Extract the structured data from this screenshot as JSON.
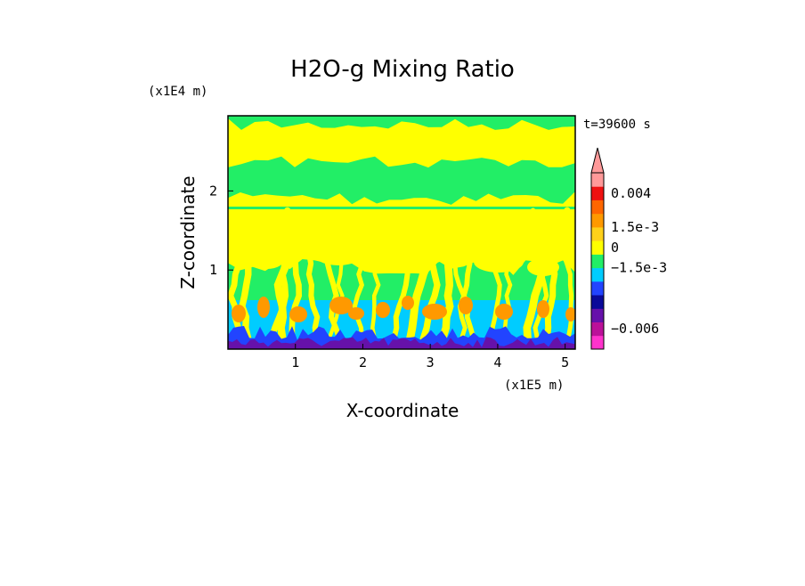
{
  "chart_data": {
    "type": "heatmap",
    "title": "H2O-g Mixing Ratio",
    "xlabel": "X-coordinate",
    "ylabel": "Z-coordinate",
    "x_unit": "(x1E5 m)",
    "y_unit": "(x1E4 m)",
    "time_label": "t=39600 s",
    "xlim": [
      0,
      5.15
    ],
    "ylim": [
      0,
      2.95
    ],
    "x_ticks": [
      {
        "value": 1,
        "label": "1"
      },
      {
        "value": 2,
        "label": "2"
      },
      {
        "value": 3,
        "label": "3"
      },
      {
        "value": 4,
        "label": "4"
      },
      {
        "value": 5,
        "label": "5"
      }
    ],
    "y_ticks": [
      {
        "value": 1,
        "label": "1"
      },
      {
        "value": 2,
        "label": "2"
      }
    ],
    "colorbar": {
      "levels": [
        {
          "color": "#ff33cc"
        },
        {
          "color": "#bb1199"
        },
        {
          "color": "#6611aa"
        },
        {
          "color": "#0a0a99"
        },
        {
          "color": "#2244ff"
        },
        {
          "color": "#00ccff"
        },
        {
          "color": "#22ee66"
        },
        {
          "color": "#ffff00"
        },
        {
          "color": "#ffd11a"
        },
        {
          "color": "#ff9900"
        },
        {
          "color": "#ff6600"
        },
        {
          "color": "#ee1111"
        },
        {
          "color": "#ff9999"
        }
      ],
      "labels": [
        {
          "text": "0.004",
          "level": 11.5
        },
        {
          "text": "1.5e-3",
          "level": 9
        },
        {
          "text": "0",
          "level": 7.5
        },
        {
          "text": "−1.5e-3",
          "level": 6
        },
        {
          "text": "−0.006",
          "level": 1.5
        }
      ]
    },
    "field": {
      "background": "#22ee66",
      "layers": [
        {
          "name": "upper-moist-band",
          "color": "#ffff00"
        },
        {
          "name": "mid-moist-band",
          "color": "#ffff00"
        },
        {
          "name": "plumes-moist",
          "color": "#ffff00"
        },
        {
          "name": "boundary-layer-dry",
          "color": "#00ccff"
        },
        {
          "name": "plume-cores",
          "color": "#ff9900"
        },
        {
          "name": "surface-dry",
          "color": "#2244ff"
        },
        {
          "name": "surface-very-dry",
          "color": "#6611aa"
        }
      ]
    }
  }
}
